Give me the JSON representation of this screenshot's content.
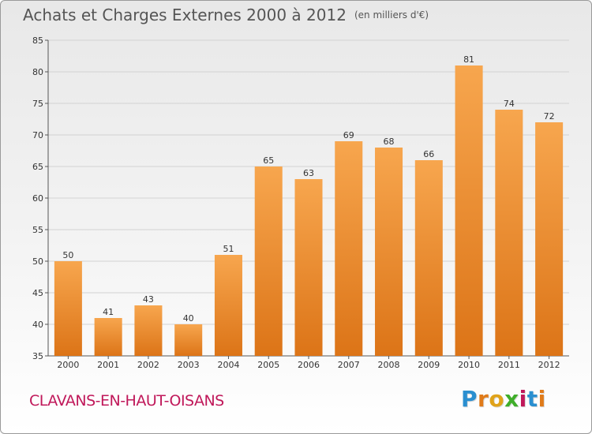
{
  "header": {
    "title": "Achats et Charges Externes 2000 à 2012",
    "unit": "(en milliers d'€)"
  },
  "footer": {
    "commune": "CLAVANS-EN-HAUT-OISANS",
    "logo_letters": [
      "P",
      "r",
      "o",
      "x",
      "i",
      "t",
      "i"
    ],
    "logo_colors": [
      "#2a8fd0",
      "#e07b1a",
      "#e0a31a",
      "#3fae2a",
      "#c0185a",
      "#2a8fd0",
      "#e07b1a"
    ]
  },
  "chart_data": {
    "type": "bar",
    "title": "Achats et Charges Externes 2000 à 2012",
    "xlabel": "",
    "ylabel": "",
    "categories": [
      "2000",
      "2001",
      "2002",
      "2003",
      "2004",
      "2005",
      "2006",
      "2007",
      "2008",
      "2009",
      "2010",
      "2011",
      "2012"
    ],
    "values": [
      50,
      41,
      43,
      40,
      51,
      65,
      63,
      69,
      68,
      66,
      81,
      74,
      72
    ],
    "ylim": [
      35,
      85
    ],
    "yticks": [
      35,
      40,
      45,
      50,
      55,
      60,
      65,
      70,
      75,
      80,
      85
    ],
    "grid": true,
    "legend": "none",
    "bar_color_top": "#f7a64e",
    "bar_color_bottom": "#dc7417"
  }
}
